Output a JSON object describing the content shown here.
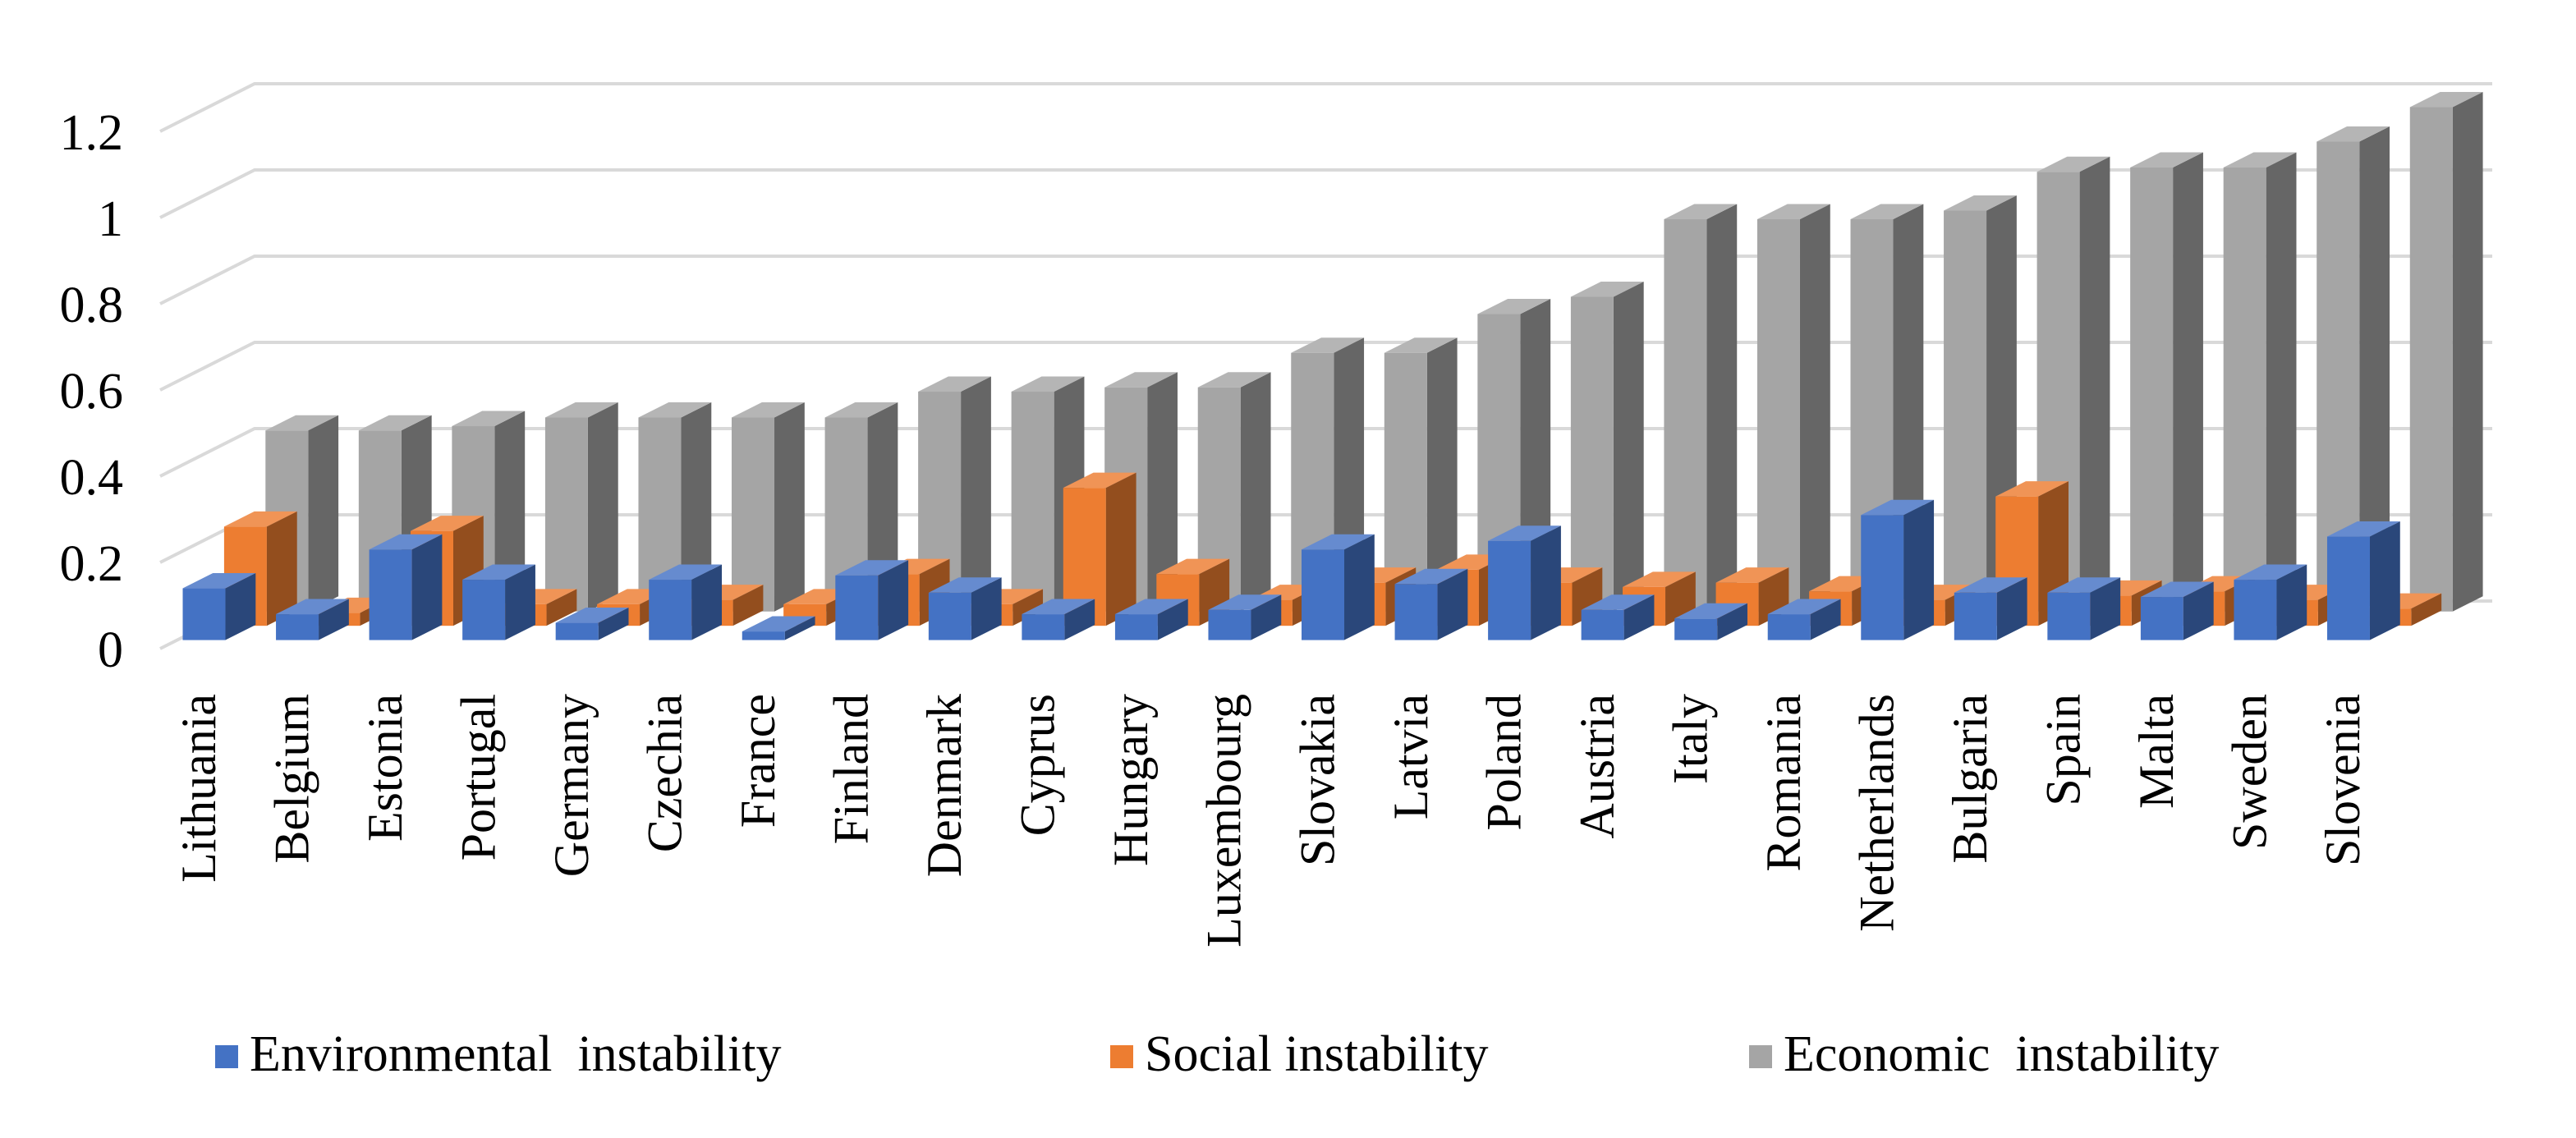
{
  "chart_data": {
    "type": "bar",
    "style": "3d-clustered",
    "title": "",
    "xlabel": "",
    "ylabel": "",
    "ylim": [
      0,
      1.2
    ],
    "y_ticks": [
      0,
      0.2,
      0.4,
      0.6,
      0.8,
      1,
      1.2
    ],
    "y_tick_labels": [
      "0",
      "0.2",
      "0.4",
      "0.6",
      "0.8",
      "1",
      "1.2"
    ],
    "grid": true,
    "legend": "bottom",
    "categories": [
      "Lithuania",
      "Belgium",
      "Estonia",
      "Portugal",
      "Germany",
      "Czechia",
      "France",
      "Finland",
      "Denmark",
      "Cyprus",
      "Hungary",
      "Luxembourg",
      "Slovakia",
      "Latvia",
      "Poland",
      "Austria",
      "Italy",
      "Romania",
      "Netherlands",
      "Bulgaria",
      "Spain",
      "Malta",
      "Sweden",
      "Slovenia"
    ],
    "series": [
      {
        "name": "Environmental  instability",
        "color": "#4472C4",
        "values": [
          0.12,
          0.06,
          0.21,
          0.14,
          0.04,
          0.14,
          0.02,
          0.15,
          0.11,
          0.06,
          0.06,
          0.07,
          0.21,
          0.13,
          0.23,
          0.07,
          0.05,
          0.06,
          0.29,
          0.11,
          0.11,
          0.1,
          0.14,
          0.24
        ]
      },
      {
        "name": "Social instability",
        "color": "#ED7D31",
        "values": [
          0.23,
          0.03,
          0.22,
          0.05,
          0.05,
          0.06,
          0.05,
          0.12,
          0.05,
          0.32,
          0.12,
          0.06,
          0.1,
          0.13,
          0.1,
          0.09,
          0.1,
          0.08,
          0.06,
          0.3,
          0.07,
          0.08,
          0.06,
          0.04
        ]
      },
      {
        "name": "Economic  instability",
        "color": "#A5A5A5",
        "values": [
          0.42,
          0.42,
          0.43,
          0.45,
          0.45,
          0.45,
          0.45,
          0.51,
          0.51,
          0.52,
          0.52,
          0.6,
          0.6,
          0.69,
          0.73,
          0.91,
          0.91,
          0.91,
          0.93,
          1.02,
          1.03,
          1.03,
          1.09,
          1.17
        ]
      }
    ]
  }
}
